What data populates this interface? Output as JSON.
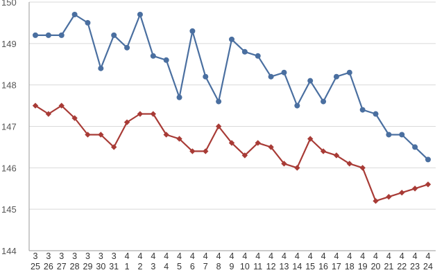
{
  "chart_data": {
    "type": "line",
    "title": "",
    "xlabel": "",
    "ylabel": "",
    "ylim": [
      144,
      150
    ],
    "yticks": [
      "144",
      "145",
      "146",
      "147",
      "148",
      "149",
      "150"
    ],
    "grid": true,
    "legend": "none",
    "categories": [
      {
        "month": "3",
        "day": "25"
      },
      {
        "month": "3",
        "day": "26"
      },
      {
        "month": "3",
        "day": "27"
      },
      {
        "month": "3",
        "day": "28"
      },
      {
        "month": "3",
        "day": "29"
      },
      {
        "month": "3",
        "day": "30"
      },
      {
        "month": "3",
        "day": "31"
      },
      {
        "month": "4",
        "day": "1"
      },
      {
        "month": "4",
        "day": "2"
      },
      {
        "month": "4",
        "day": "3"
      },
      {
        "month": "4",
        "day": "4"
      },
      {
        "month": "4",
        "day": "5"
      },
      {
        "month": "4",
        "day": "6"
      },
      {
        "month": "4",
        "day": "7"
      },
      {
        "month": "4",
        "day": "8"
      },
      {
        "month": "4",
        "day": "9"
      },
      {
        "month": "4",
        "day": "10"
      },
      {
        "month": "4",
        "day": "11"
      },
      {
        "month": "4",
        "day": "12"
      },
      {
        "month": "4",
        "day": "13"
      },
      {
        "month": "4",
        "day": "14"
      },
      {
        "month": "4",
        "day": "15"
      },
      {
        "month": "4",
        "day": "16"
      },
      {
        "month": "4",
        "day": "17"
      },
      {
        "month": "4",
        "day": "18"
      },
      {
        "month": "4",
        "day": "19"
      },
      {
        "month": "4",
        "day": "20"
      },
      {
        "month": "4",
        "day": "21"
      },
      {
        "month": "4",
        "day": "22"
      },
      {
        "month": "4",
        "day": "23"
      },
      {
        "month": "4",
        "day": "24"
      }
    ],
    "series": [
      {
        "color": "#4a6fa0",
        "marker": "circle",
        "values": [
          149.2,
          149.2,
          149.2,
          149.7,
          149.5,
          148.4,
          149.2,
          148.9,
          149.7,
          148.7,
          148.6,
          147.7,
          149.3,
          148.2,
          147.6,
          149.1,
          148.8,
          148.7,
          148.2,
          148.3,
          147.5,
          148.1,
          147.6,
          148.2,
          148.3,
          147.4,
          147.3,
          146.8,
          146.8,
          146.5,
          146.2
        ]
      },
      {
        "color": "#a83b36",
        "marker": "diamond",
        "values": [
          147.5,
          147.3,
          147.5,
          147.2,
          146.8,
          146.8,
          146.5,
          147.1,
          147.3,
          147.3,
          146.8,
          146.7,
          146.4,
          146.4,
          147.0,
          146.6,
          146.3,
          146.6,
          146.5,
          146.1,
          146.0,
          146.7,
          146.4,
          146.3,
          146.1,
          146.0,
          145.2,
          145.3,
          145.4,
          145.5,
          145.6
        ]
      }
    ]
  }
}
